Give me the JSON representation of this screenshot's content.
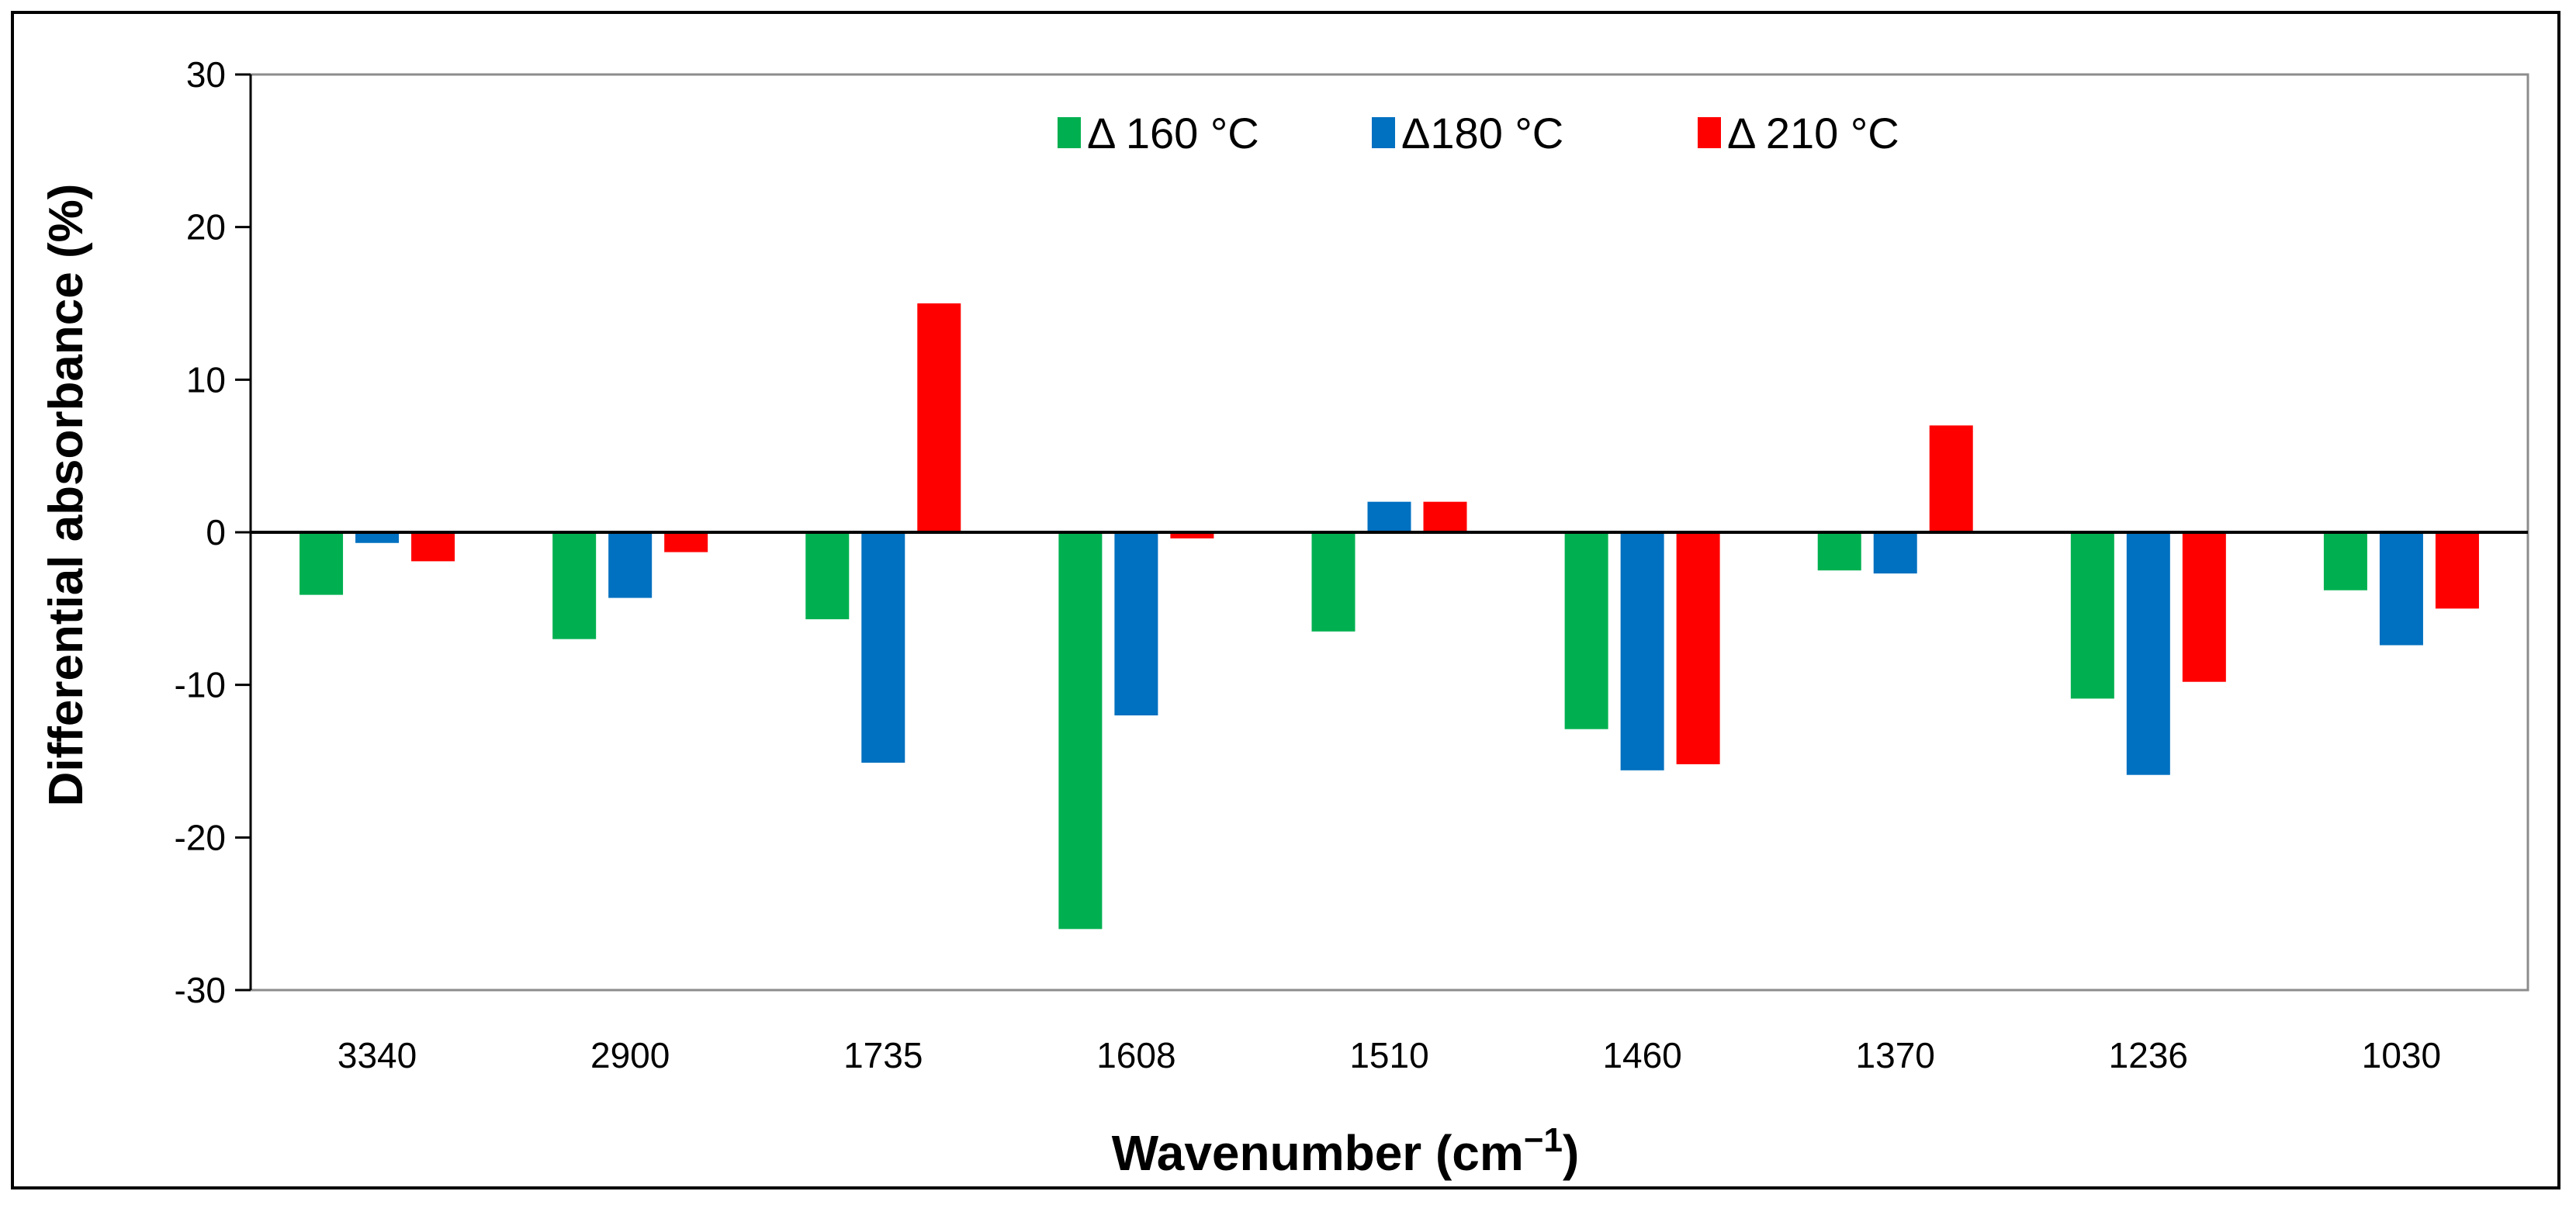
{
  "chart_data": {
    "type": "bar",
    "title": "",
    "xlabel": "Wavenumber (cm",
    "xlabel_superscript": "−1",
    "xlabel_close": ")",
    "ylabel": "Differential absorbance (%)",
    "ylim": [
      -30,
      30
    ],
    "yticks": [
      -30,
      -20,
      -10,
      0,
      10,
      20,
      30
    ],
    "grid": false,
    "legend_position": "top-center",
    "categories": [
      "3340",
      "2900",
      "1735",
      "1608",
      "1510",
      "1460",
      "1370",
      "1236",
      "1030"
    ],
    "series": [
      {
        "name": "Δ 160 °C",
        "color": "#00b050",
        "values": [
          -4.1,
          -7.0,
          -5.7,
          -26.0,
          -6.5,
          -12.9,
          -2.5,
          -10.9,
          -3.8
        ]
      },
      {
        "name": "Δ180 °C",
        "color": "#0070c0",
        "values": [
          -0.7,
          -4.3,
          -15.1,
          -12.0,
          2.0,
          -15.6,
          -2.7,
          -15.9,
          -7.4
        ]
      },
      {
        "name": "Δ 210 °C",
        "color": "#ff0000",
        "values": [
          -1.9,
          -1.3,
          15.0,
          -0.4,
          2.0,
          -15.2,
          7.0,
          -9.8,
          -5.0
        ]
      }
    ]
  }
}
